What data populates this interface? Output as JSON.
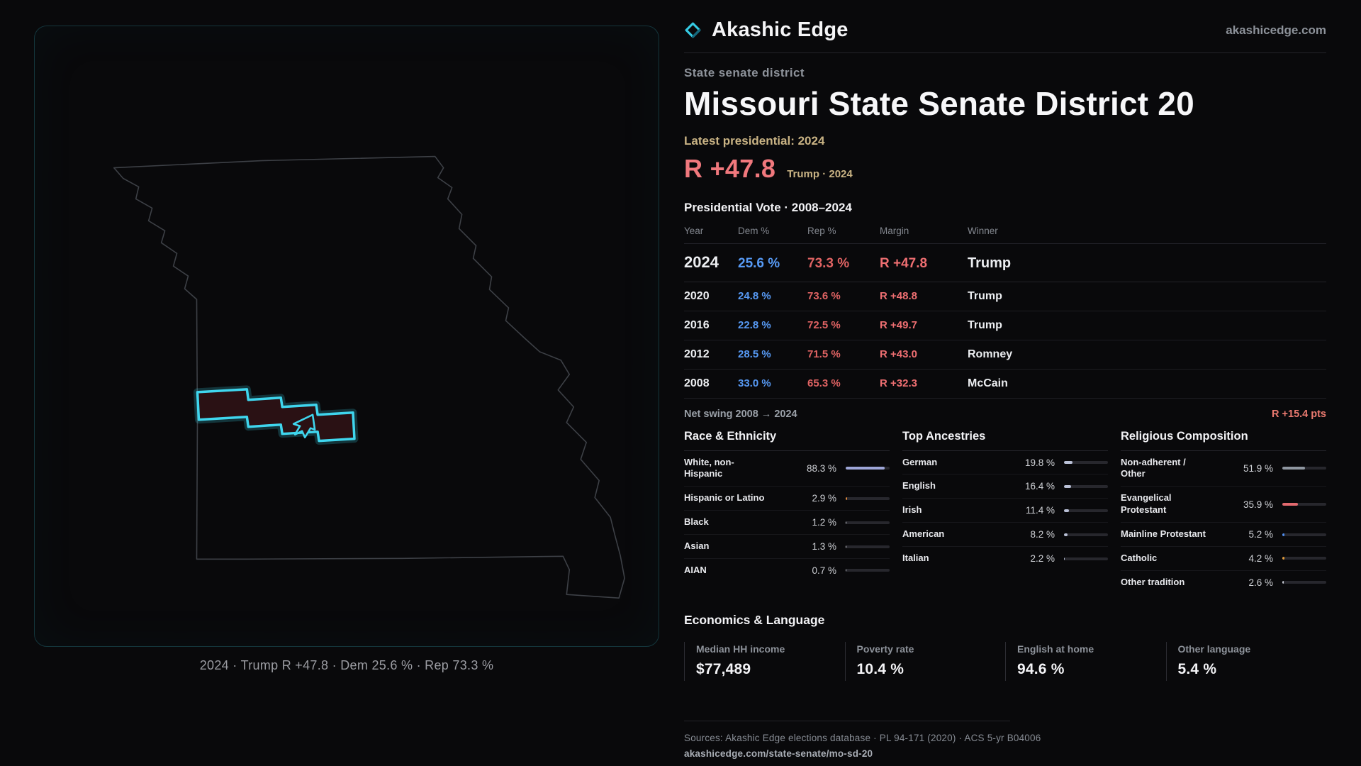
{
  "colors": {
    "accent_cyan": "#35cbe4",
    "dem_blue": "#579af5",
    "rep_red": "#e06363",
    "margin_red": "#f0787d",
    "tan": "#c9b384",
    "background": "#09090b"
  },
  "map": {
    "caption": "2024 · Trump R +47.8 · Dem 25.6 % · Rep 73.3 %",
    "state": "Missouri"
  },
  "header": {
    "brand": "Akashic Edge",
    "site": "akashicedge.com"
  },
  "district": {
    "kicker": "State senate district",
    "title": "Missouri State Senate District 20",
    "latest_label": "Latest presidential: 2024",
    "margin_big": "R +47.8",
    "margin_context": "Trump · 2024"
  },
  "vote_table": {
    "title": "Presidential Vote · 2008–2024",
    "columns": [
      "Year",
      "Dem %",
      "Rep %",
      "Margin",
      "Winner"
    ],
    "rows": [
      {
        "year": "2024",
        "dem": "25.6 %",
        "rep": "73.3 %",
        "margin": "R +47.8",
        "winner": "Trump"
      },
      {
        "year": "2020",
        "dem": "24.8 %",
        "rep": "73.6 %",
        "margin": "R +48.8",
        "winner": "Trump"
      },
      {
        "year": "2016",
        "dem": "22.8 %",
        "rep": "72.5 %",
        "margin": "R +49.7",
        "winner": "Trump"
      },
      {
        "year": "2012",
        "dem": "28.5 %",
        "rep": "71.5 %",
        "margin": "R +43.0",
        "winner": "Romney"
      },
      {
        "year": "2008",
        "dem": "33.0 %",
        "rep": "65.3 %",
        "margin": "R +32.3",
        "winner": "McCain"
      }
    ],
    "net_swing_label": "Net swing 2008 → 2024",
    "net_swing_value": "R +15.4 pts"
  },
  "demographics": {
    "race": {
      "title": "Race & Ethnicity",
      "rows": [
        {
          "label": "White, non-Hispanic",
          "value": "88.3 %",
          "pct": 88.3,
          "color": "#9ea6d8"
        },
        {
          "label": "Hispanic or Latino",
          "value": "2.9 %",
          "pct": 2.9,
          "color": "#e08a3c"
        },
        {
          "label": "Black",
          "value": "1.2 %",
          "pct": 1.2,
          "color": "#d9dbe4"
        },
        {
          "label": "Asian",
          "value": "1.3 %",
          "pct": 1.3,
          "color": "#d9dbe4"
        },
        {
          "label": "AIAN",
          "value": "0.7 %",
          "pct": 0.7,
          "color": "#b9bcc6"
        }
      ]
    },
    "ancestries": {
      "title": "Top Ancestries",
      "rows": [
        {
          "label": "German",
          "value": "19.8 %",
          "pct": 19.8,
          "color": "#b9c0d6"
        },
        {
          "label": "English",
          "value": "16.4 %",
          "pct": 16.4,
          "color": "#b9c0d6"
        },
        {
          "label": "Irish",
          "value": "11.4 %",
          "pct": 11.4,
          "color": "#b9c0d6"
        },
        {
          "label": "American",
          "value": "8.2 %",
          "pct": 8.2,
          "color": "#b9c0d6"
        },
        {
          "label": "Italian",
          "value": "2.2 %",
          "pct": 2.2,
          "color": "#b9c0d6"
        }
      ]
    },
    "religion": {
      "title": "Religious Composition",
      "rows": [
        {
          "label": "Non-adherent / Other",
          "value": "51.9 %",
          "pct": 51.9,
          "color": "#8f97a1"
        },
        {
          "label": "Evangelical Protestant",
          "value": "35.9 %",
          "pct": 35.9,
          "color": "#e2696e"
        },
        {
          "label": "Mainline Protestant",
          "value": "5.2 %",
          "pct": 5.2,
          "color": "#4f8ef0"
        },
        {
          "label": "Catholic",
          "value": "4.2 %",
          "pct": 4.2,
          "color": "#e09a3a"
        },
        {
          "label": "Other tradition",
          "value": "2.6 %",
          "pct": 2.6,
          "color": "#c9ccd6"
        }
      ]
    }
  },
  "economics": {
    "title": "Economics & Language",
    "stats": [
      {
        "label": "Median HH income",
        "value": "$77,489"
      },
      {
        "label": "Poverty rate",
        "value": "10.4 %"
      },
      {
        "label": "English at home",
        "value": "94.6 %"
      },
      {
        "label": "Other language",
        "value": "5.4 %"
      }
    ]
  },
  "footer": {
    "sources": "Sources: Akashic Edge elections database · PL 94-171 (2020) · ACS 5-yr B04006",
    "permalink": "akashicedge.com/state-senate/mo-sd-20"
  }
}
